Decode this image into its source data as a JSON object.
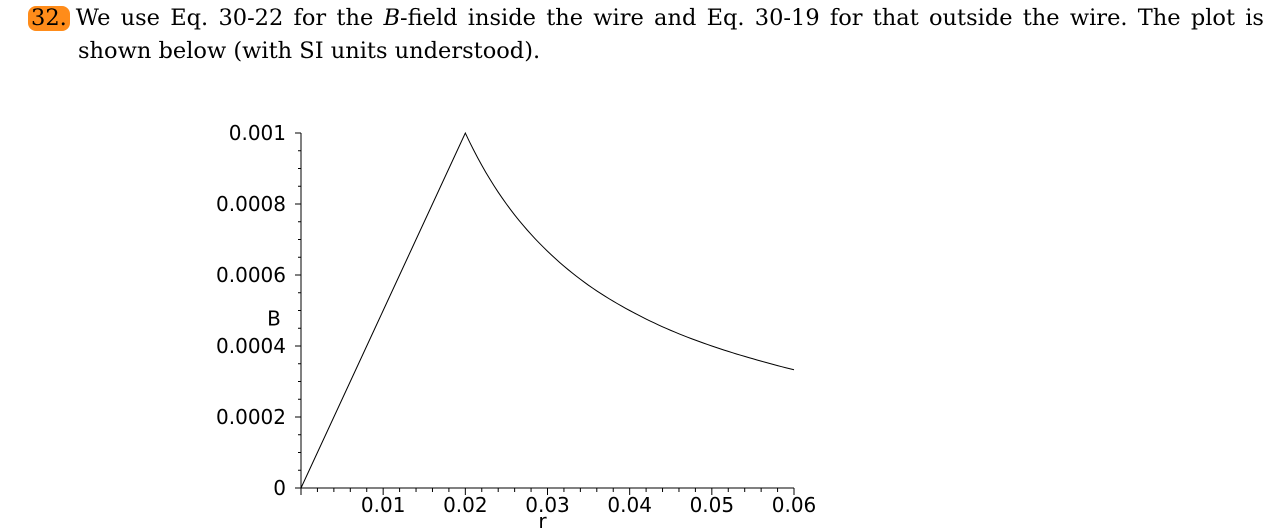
{
  "problem": {
    "number": "32.",
    "line1_pre": "We use Eq. 30-22 for the ",
    "line1_var": "B",
    "line1_post": "-field inside the wire and Eq. 30-19 for that outside the wire.  The plot is",
    "line2": "shown below (with SI units understood)."
  },
  "chart_data": {
    "type": "line",
    "title": "",
    "xlabel": "r",
    "ylabel": "B",
    "xlim": [
      0,
      0.06
    ],
    "ylim": [
      0,
      0.001
    ],
    "x_ticks": [
      {
        "value": 0.01,
        "label": "0.01"
      },
      {
        "value": 0.02,
        "label": "0.02"
      },
      {
        "value": 0.03,
        "label": "0.03"
      },
      {
        "value": 0.04,
        "label": "0.04"
      },
      {
        "value": 0.05,
        "label": "0.05"
      },
      {
        "value": 0.06,
        "label": "0.06"
      }
    ],
    "y_ticks": [
      {
        "value": 0,
        "label": "0"
      },
      {
        "value": 0.0002,
        "label": "0.0002"
      },
      {
        "value": 0.0004,
        "label": "0.0004"
      },
      {
        "value": 0.0006,
        "label": "0.0006"
      },
      {
        "value": 0.0008,
        "label": "0.0008"
      },
      {
        "value": 0.001,
        "label": "0.001"
      }
    ],
    "grid": false,
    "series": [
      {
        "x": [
          0,
          0.005,
          0.01,
          0.015,
          0.02,
          0.025,
          0.03,
          0.035,
          0.04,
          0.045,
          0.05,
          0.055,
          0.06
        ],
        "y": [
          0,
          0.00025,
          0.0005,
          0.00075,
          0.001,
          0.0008,
          0.000667,
          0.000571,
          0.0005,
          0.000444,
          0.0004,
          0.000364,
          0.000333
        ]
      }
    ],
    "color": "#000000"
  }
}
